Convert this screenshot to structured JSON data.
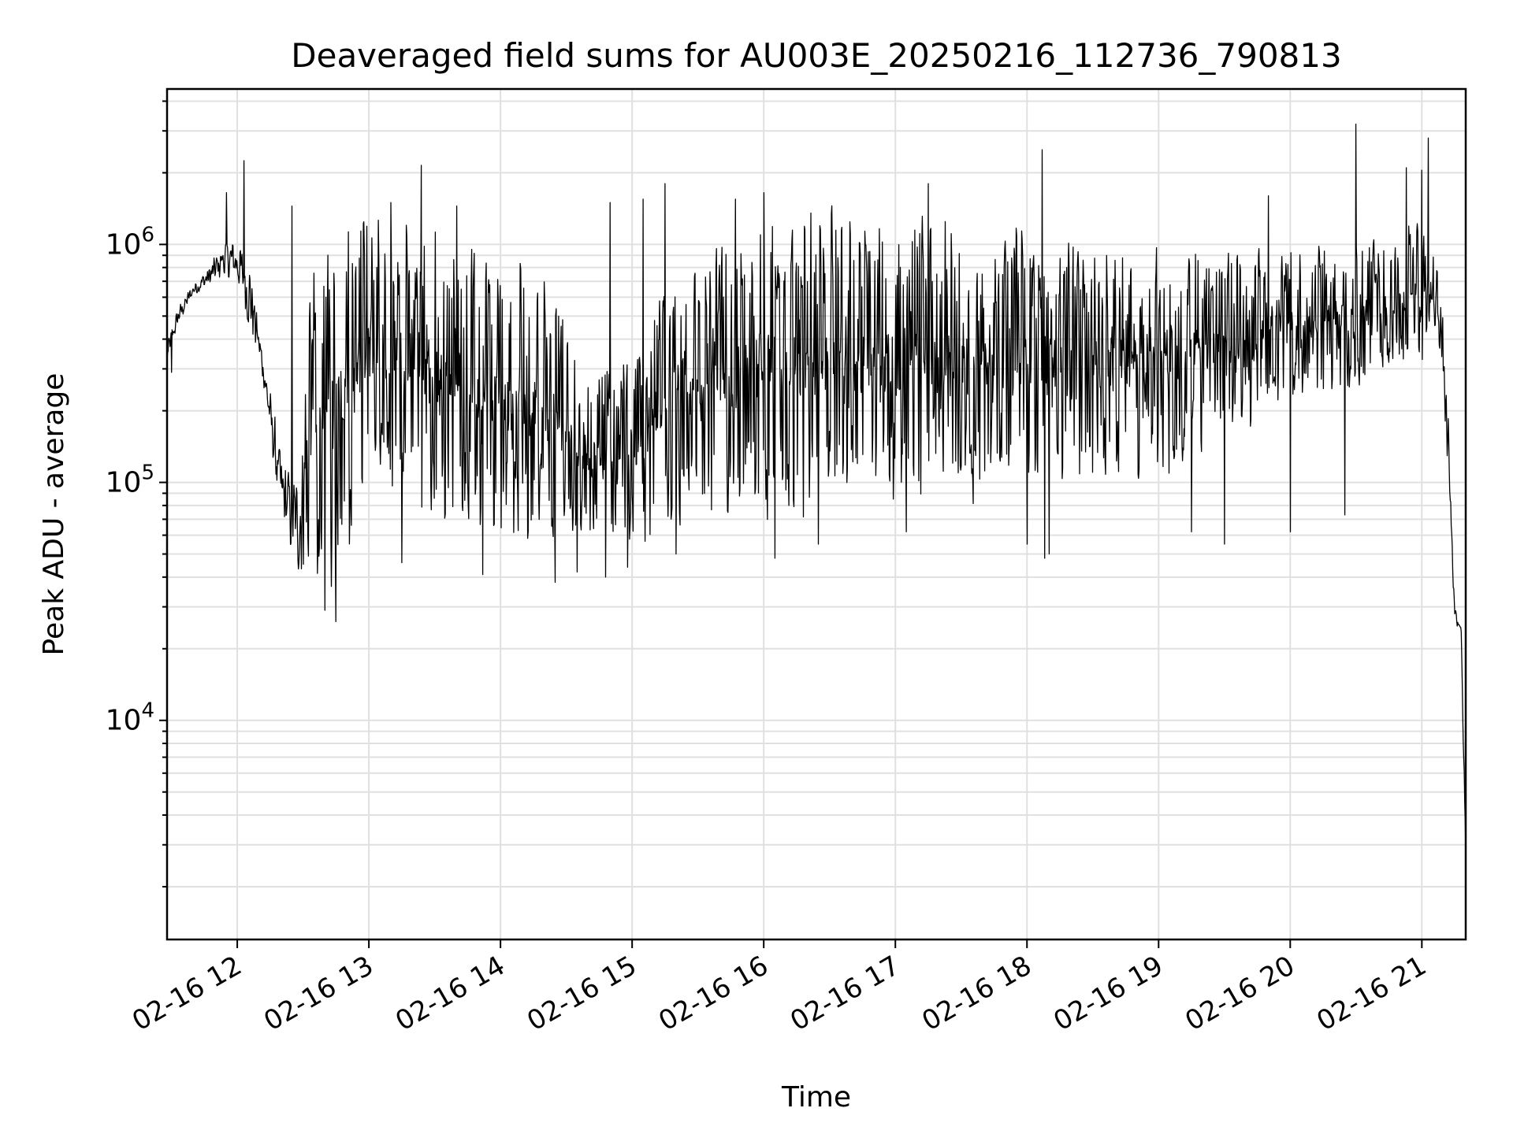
{
  "chart_data": {
    "type": "line",
    "title": "Deaveraged field sums for AU003E_20250216_112736_790813",
    "xlabel": "Time",
    "ylabel": "Peak ADU - average",
    "xscale": "time",
    "yscale": "log",
    "xlim": [
      "2025-02-16T11:28",
      "2025-02-16T21:20"
    ],
    "ylim": [
      1200,
      4500000
    ],
    "grid": true,
    "legend": "none",
    "line_color": "#000000",
    "grid_color": "#e0e0e0",
    "x_ticks": [
      {
        "value": "2025-02-16T12:00",
        "label": "02-16 12"
      },
      {
        "value": "2025-02-16T13:00",
        "label": "02-16 13"
      },
      {
        "value": "2025-02-16T14:00",
        "label": "02-16 14"
      },
      {
        "value": "2025-02-16T15:00",
        "label": "02-16 15"
      },
      {
        "value": "2025-02-16T16:00",
        "label": "02-16 16"
      },
      {
        "value": "2025-02-16T17:00",
        "label": "02-16 17"
      },
      {
        "value": "2025-02-16T18:00",
        "label": "02-16 18"
      },
      {
        "value": "2025-02-16T19:00",
        "label": "02-16 19"
      },
      {
        "value": "2025-02-16T20:00",
        "label": "02-16 20"
      },
      {
        "value": "2025-02-16T21:00",
        "label": "02-16 21"
      }
    ],
    "y_ticks": [
      {
        "value": 10000,
        "base": "10",
        "exp": "4"
      },
      {
        "value": 100000,
        "base": "10",
        "exp": "5"
      },
      {
        "value": 1000000,
        "base": "10",
        "exp": "6"
      }
    ],
    "series": [
      {
        "upper_envelope": [
          [
            "2025-02-16T11:28",
            400000
          ],
          [
            "2025-02-16T11:33",
            550000
          ],
          [
            "2025-02-16T11:40",
            700000
          ],
          [
            "2025-02-16T11:48",
            850000
          ],
          [
            "2025-02-16T11:54",
            1100000
          ],
          [
            "2025-02-16T12:00",
            1100000
          ],
          [
            "2025-02-16T12:06",
            900000
          ],
          [
            "2025-02-16T12:12",
            350000
          ],
          [
            "2025-02-16T12:20",
            140000
          ],
          [
            "2025-02-16T12:28",
            110000
          ],
          [
            "2025-02-16T12:35",
            1200000
          ],
          [
            "2025-02-16T12:50",
            1300000
          ],
          [
            "2025-02-16T13:00",
            1400000
          ],
          [
            "2025-02-16T13:30",
            1200000
          ],
          [
            "2025-02-16T14:00",
            1000000
          ],
          [
            "2025-02-16T14:20",
            850000
          ],
          [
            "2025-02-16T14:40",
            350000
          ],
          [
            "2025-02-16T15:00",
            350000
          ],
          [
            "2025-02-16T15:20",
            900000
          ],
          [
            "2025-02-16T15:40",
            1200000
          ],
          [
            "2025-02-16T16:00",
            1500000
          ],
          [
            "2025-02-16T16:40",
            1500000
          ],
          [
            "2025-02-16T17:00",
            1400000
          ],
          [
            "2025-02-16T17:30",
            1350000
          ],
          [
            "2025-02-16T18:00",
            1200000
          ],
          [
            "2025-02-16T18:30",
            1100000
          ],
          [
            "2025-02-16T19:00",
            1100000
          ],
          [
            "2025-02-16T19:30",
            1000000
          ],
          [
            "2025-02-16T20:00",
            1000000
          ],
          [
            "2025-02-16T20:30",
            1050000
          ],
          [
            "2025-02-16T21:00",
            1300000
          ],
          [
            "2025-02-16T21:08",
            900000
          ],
          [
            "2025-02-16T21:12",
            200000
          ],
          [
            "2025-02-16T21:15",
            30000
          ],
          [
            "2025-02-16T21:18",
            25000
          ],
          [
            "2025-02-16T21:20",
            3500
          ]
        ],
        "lower_envelope": [
          [
            "2025-02-16T11:28",
            300000
          ],
          [
            "2025-02-16T11:33",
            450000
          ],
          [
            "2025-02-16T11:40",
            600000
          ],
          [
            "2025-02-16T11:48",
            650000
          ],
          [
            "2025-02-16T11:54",
            700000
          ],
          [
            "2025-02-16T12:00",
            650000
          ],
          [
            "2025-02-16T12:06",
            400000
          ],
          [
            "2025-02-16T12:12",
            250000
          ],
          [
            "2025-02-16T12:20",
            60000
          ],
          [
            "2025-02-16T12:28",
            38000
          ],
          [
            "2025-02-16T12:35",
            32000
          ],
          [
            "2025-02-16T12:50",
            35000
          ],
          [
            "2025-02-16T13:00",
            110000
          ],
          [
            "2025-02-16T13:30",
            60000
          ],
          [
            "2025-02-16T14:00",
            55000
          ],
          [
            "2025-02-16T14:20",
            52000
          ],
          [
            "2025-02-16T14:40",
            45000
          ],
          [
            "2025-02-16T15:00",
            48000
          ],
          [
            "2025-02-16T15:20",
            60000
          ],
          [
            "2025-02-16T15:40",
            58000
          ],
          [
            "2025-02-16T16:00",
            65000
          ],
          [
            "2025-02-16T16:40",
            70000
          ],
          [
            "2025-02-16T17:00",
            75000
          ],
          [
            "2025-02-16T17:30",
            80000
          ],
          [
            "2025-02-16T18:00",
            85000
          ],
          [
            "2025-02-16T18:30",
            90000
          ],
          [
            "2025-02-16T19:00",
            100000
          ],
          [
            "2025-02-16T19:30",
            150000
          ],
          [
            "2025-02-16T20:00",
            200000
          ],
          [
            "2025-02-16T20:30",
            250000
          ],
          [
            "2025-02-16T21:00",
            300000
          ],
          [
            "2025-02-16T21:08",
            350000
          ],
          [
            "2025-02-16T21:12",
            100000
          ],
          [
            "2025-02-16T21:15",
            25000
          ],
          [
            "2025-02-16T21:18",
            22000
          ],
          [
            "2025-02-16T21:20",
            2000
          ]
        ],
        "spikes": [
          [
            "2025-02-16T11:55",
            1650000
          ],
          [
            "2025-02-16T12:03",
            2250000
          ],
          [
            "2025-02-16T12:25",
            1450000
          ],
          [
            "2025-02-16T12:40",
            1350000
          ],
          [
            "2025-02-16T13:10",
            1500000
          ],
          [
            "2025-02-16T13:24",
            2150000
          ],
          [
            "2025-02-16T13:40",
            1450000
          ],
          [
            "2025-02-16T14:25",
            1450000
          ],
          [
            "2025-02-16T14:50",
            1500000
          ],
          [
            "2025-02-16T15:05",
            1550000
          ],
          [
            "2025-02-16T15:15",
            1800000
          ],
          [
            "2025-02-16T15:47",
            1550000
          ],
          [
            "2025-02-16T16:00",
            1650000
          ],
          [
            "2025-02-16T17:15",
            1800000
          ],
          [
            "2025-02-16T18:07",
            2500000
          ],
          [
            "2025-02-16T19:50",
            1600000
          ],
          [
            "2025-02-16T20:30",
            3200000
          ],
          [
            "2025-02-16T20:53",
            2100000
          ],
          [
            "2025-02-16T21:00",
            2050000
          ],
          [
            "2025-02-16T21:03",
            2800000
          ]
        ],
        "dips": [
          [
            "2025-02-16T11:30",
            290000
          ],
          [
            "2025-02-16T12:40",
            29000
          ],
          [
            "2025-02-16T12:45",
            26000
          ],
          [
            "2025-02-16T13:15",
            46000
          ],
          [
            "2025-02-16T13:52",
            41000
          ],
          [
            "2025-02-16T14:25",
            38000
          ],
          [
            "2025-02-16T14:35",
            42000
          ],
          [
            "2025-02-16T14:48",
            40000
          ],
          [
            "2025-02-16T14:58",
            44000
          ],
          [
            "2025-02-16T15:20",
            50000
          ],
          [
            "2025-02-16T16:05",
            48000
          ],
          [
            "2025-02-16T16:25",
            55000
          ],
          [
            "2025-02-16T17:05",
            62000
          ],
          [
            "2025-02-16T18:00",
            55000
          ],
          [
            "2025-02-16T18:08",
            48000
          ],
          [
            "2025-02-16T18:10",
            50000
          ],
          [
            "2025-02-16T19:15",
            62000
          ],
          [
            "2025-02-16T19:30",
            55000
          ],
          [
            "2025-02-16T20:00",
            62000
          ],
          [
            "2025-02-16T20:25",
            73000
          ]
        ]
      }
    ]
  }
}
